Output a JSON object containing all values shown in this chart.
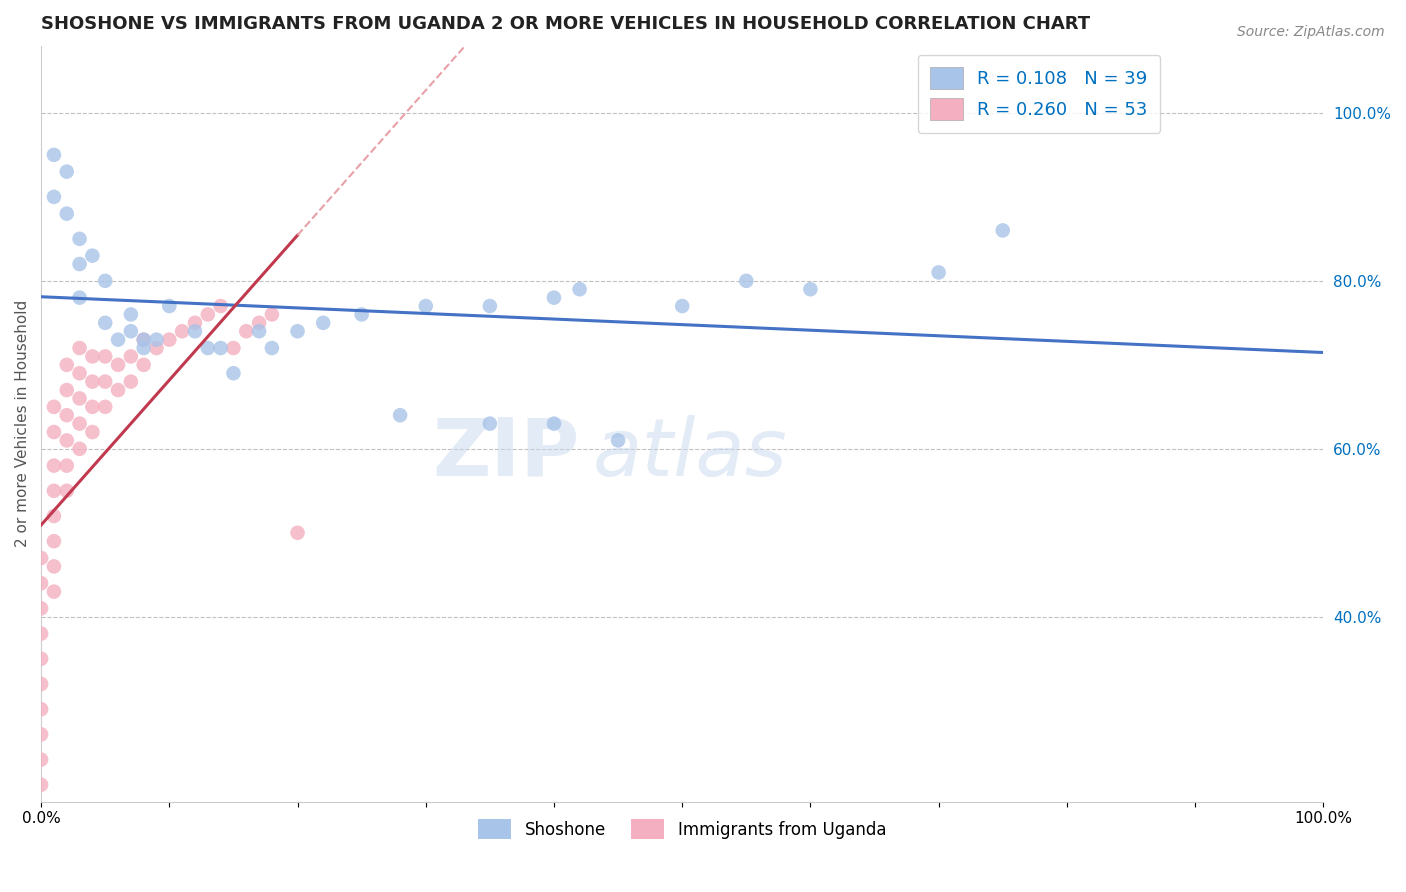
{
  "title": "SHOSHONE VS IMMIGRANTS FROM UGANDA 2 OR MORE VEHICLES IN HOUSEHOLD CORRELATION CHART",
  "source": "Source: ZipAtlas.com",
  "ylabel": "2 or more Vehicles in Household",
  "xlim": [
    0,
    1.0
  ],
  "ylim": [
    0.18,
    1.08
  ],
  "right_yticks": [
    0.4,
    0.6,
    0.8,
    1.0
  ],
  "right_ytick_labels": [
    "40.0%",
    "60.0%",
    "80.0%",
    "100.0%"
  ],
  "shoshone_color": "#a8c4e8",
  "uganda_color": "#f4afc0",
  "shoshone_line_color": "#4472c4",
  "uganda_line_color": "#c0394e",
  "uganda_line_dashed_color": "#e8a0a8",
  "R_shoshone": 0.108,
  "N_shoshone": 39,
  "R_uganda": 0.26,
  "N_uganda": 53,
  "shoshone_x": [
    0.01,
    0.01,
    0.02,
    0.02,
    0.03,
    0.03,
    0.03,
    0.04,
    0.05,
    0.05,
    0.06,
    0.07,
    0.07,
    0.08,
    0.09,
    0.1,
    0.12,
    0.14,
    0.17,
    0.18,
    0.2,
    0.22,
    0.25,
    0.3,
    0.35,
    0.4,
    0.42,
    0.5,
    0.55,
    0.6,
    0.7,
    0.75,
    0.4,
    0.45,
    0.35,
    0.28,
    0.15,
    0.13,
    0.08
  ],
  "shoshone_y": [
    0.9,
    0.95,
    0.88,
    0.93,
    0.82,
    0.85,
    0.78,
    0.83,
    0.8,
    0.75,
    0.73,
    0.74,
    0.76,
    0.72,
    0.73,
    0.77,
    0.74,
    0.72,
    0.74,
    0.72,
    0.74,
    0.75,
    0.76,
    0.77,
    0.77,
    0.78,
    0.79,
    0.77,
    0.8,
    0.79,
    0.81,
    0.86,
    0.63,
    0.61,
    0.63,
    0.64,
    0.69,
    0.72,
    0.73
  ],
  "uganda_x": [
    0.0,
    0.0,
    0.0,
    0.0,
    0.0,
    0.0,
    0.0,
    0.0,
    0.0,
    0.0,
    0.01,
    0.01,
    0.01,
    0.01,
    0.01,
    0.01,
    0.01,
    0.01,
    0.02,
    0.02,
    0.02,
    0.02,
    0.02,
    0.02,
    0.03,
    0.03,
    0.03,
    0.03,
    0.03,
    0.04,
    0.04,
    0.04,
    0.04,
    0.05,
    0.05,
    0.05,
    0.06,
    0.06,
    0.07,
    0.07,
    0.08,
    0.08,
    0.09,
    0.1,
    0.11,
    0.12,
    0.13,
    0.14,
    0.15,
    0.16,
    0.17,
    0.18,
    0.2
  ],
  "uganda_y": [
    0.2,
    0.23,
    0.26,
    0.29,
    0.32,
    0.35,
    0.38,
    0.41,
    0.44,
    0.47,
    0.43,
    0.46,
    0.49,
    0.52,
    0.55,
    0.58,
    0.62,
    0.65,
    0.55,
    0.58,
    0.61,
    0.64,
    0.67,
    0.7,
    0.6,
    0.63,
    0.66,
    0.69,
    0.72,
    0.62,
    0.65,
    0.68,
    0.71,
    0.65,
    0.68,
    0.71,
    0.67,
    0.7,
    0.68,
    0.71,
    0.7,
    0.73,
    0.72,
    0.73,
    0.74,
    0.75,
    0.76,
    0.77,
    0.72,
    0.74,
    0.75,
    0.76,
    0.5
  ],
  "watermark_zip": "ZIP",
  "watermark_atlas": "atlas",
  "background_color": "#ffffff",
  "grid_color": "#bbbbbb",
  "title_color": "#222222",
  "legend_color": "#0070c0"
}
